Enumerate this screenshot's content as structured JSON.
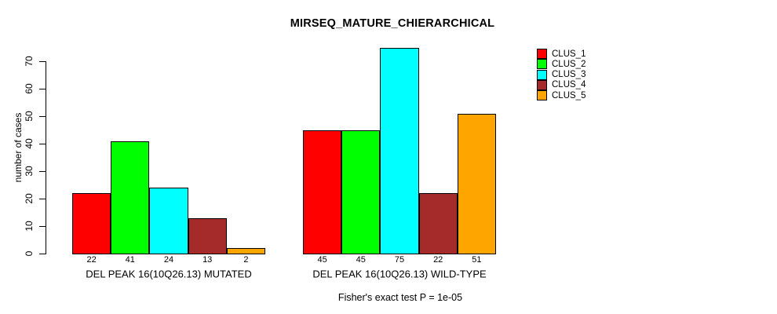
{
  "figure": {
    "title": "MIRSEQ_MATURE_CHIERARCHICAL",
    "subtitle": "Fisher's exact test P = 1e-05",
    "y_axis_label": "number of cases"
  },
  "legend": {
    "items": [
      {
        "label": "CLUS_1",
        "color": "#ff0000"
      },
      {
        "label": "CLUS_2",
        "color": "#00ff00"
      },
      {
        "label": "CLUS_3",
        "color": "#00ffff"
      },
      {
        "label": "CLUS_4",
        "color": "#a52a2a"
      },
      {
        "label": "CLUS_5",
        "color": "#ffa500"
      }
    ]
  },
  "chart_data": {
    "type": "bar",
    "title": "MIRSEQ_MATURE_CHIERARCHICAL",
    "ylabel": "number of cases",
    "ylim": [
      0,
      70
    ],
    "yticks": [
      0,
      10,
      20,
      30,
      40,
      50,
      60,
      70
    ],
    "grid": false,
    "legend_position": "top-right-outside",
    "categories": [
      "DEL PEAK 16(10Q26.13) MUTATED",
      "DEL PEAK 16(10Q26.13) WILD-TYPE"
    ],
    "series": [
      {
        "name": "CLUS_1",
        "color": "#ff0000",
        "values": [
          22,
          45
        ]
      },
      {
        "name": "CLUS_2",
        "color": "#00ff00",
        "values": [
          41,
          45
        ]
      },
      {
        "name": "CLUS_3",
        "color": "#00ffff",
        "values": [
          24,
          75
        ]
      },
      {
        "name": "CLUS_4",
        "color": "#a52a2a",
        "values": [
          13,
          22
        ]
      },
      {
        "name": "CLUS_5",
        "color": "#ffa500",
        "values": [
          2,
          51
        ]
      }
    ],
    "bar_value_labels": [
      [
        22,
        41,
        24,
        13,
        2
      ],
      [
        45,
        45,
        75,
        22,
        51
      ]
    ],
    "annotation": "Fisher's exact test P = 1e-05"
  }
}
